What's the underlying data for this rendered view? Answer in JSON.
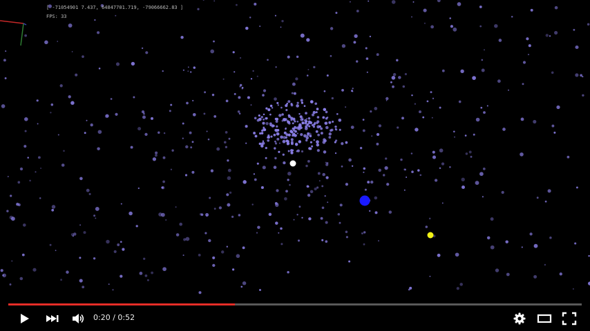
{
  "hud": {
    "coordinates": "[ -71054901 7.437, 64847701.719, -79066662.83 ]",
    "fps": "FPS: 33"
  },
  "player": {
    "time_display": "0:20 / 0:52",
    "progress_played": 0.395,
    "progress_buffered": 0.34,
    "accent_color": "#e52d27"
  },
  "scene": {
    "background": "#000000",
    "particle_color": "#8b7fe8",
    "highlight_white": "#ffffff",
    "highlight_blue": "#1a1aff",
    "highlight_yellow": "#f2f216"
  },
  "icons": {
    "play": "play-icon",
    "next": "next-icon",
    "volume": "volume-icon",
    "settings": "gear-icon",
    "theater": "theater-mode-icon",
    "fullscreen": "fullscreen-icon"
  }
}
